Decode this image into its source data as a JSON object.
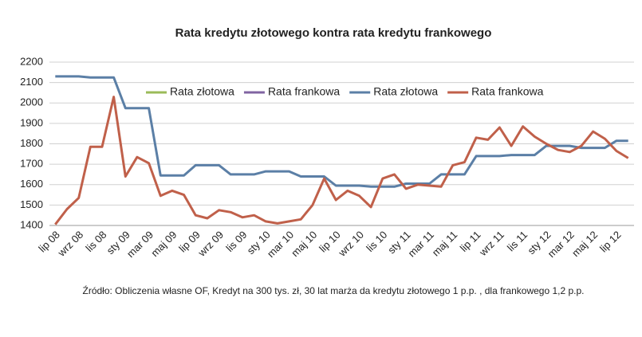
{
  "chart_data": {
    "type": "line",
    "title": "Rata kredytu złotowego kontra rata kredytu frankowego",
    "note": "Źródło: Obliczenia własne OF, Kredyt na 300 tys. zł, 30 lat marża da kredytu złotowego 1 p.p. , dla frankowego 1,2 p.p.",
    "categories": [
      "lip 08",
      null,
      "wrz 08",
      null,
      "lis 08",
      null,
      "sty 09",
      null,
      "mar 09",
      null,
      "maj 09",
      null,
      "lip 09",
      null,
      "wrz 09",
      null,
      "lis 09",
      null,
      "sty 10",
      null,
      "mar 10",
      null,
      "maj 10",
      null,
      "lip 10",
      null,
      "wrz 10",
      null,
      "lis 10",
      null,
      "sty 11",
      null,
      "mar 11",
      null,
      "maj 11",
      null,
      "lip 11",
      null,
      "wrz 11",
      null,
      "lis 11",
      null,
      "sty 12",
      null,
      "mar 12",
      null,
      "maj 12",
      null,
      "lip 12",
      null
    ],
    "series": [
      {
        "name": "Rata złotowa",
        "color": "#9bbb59",
        "values": [
          null,
          null,
          null,
          null,
          null,
          null,
          null,
          null,
          null,
          null,
          null,
          null,
          null,
          null,
          null,
          null,
          null,
          null,
          null,
          null,
          null,
          null,
          null,
          null,
          null,
          null,
          null,
          null,
          null,
          null,
          null,
          null,
          null,
          null,
          null,
          null,
          null,
          null,
          null,
          null,
          null,
          null,
          null,
          null,
          null,
          null,
          null,
          null,
          null,
          null
        ]
      },
      {
        "name": "Rata frankowa",
        "color": "#8064a2",
        "values": [
          null,
          null,
          null,
          null,
          null,
          null,
          null,
          null,
          null,
          null,
          null,
          null,
          null,
          null,
          null,
          null,
          null,
          null,
          null,
          null,
          null,
          null,
          null,
          null,
          null,
          null,
          null,
          null,
          null,
          null,
          null,
          null,
          null,
          null,
          null,
          null,
          null,
          null,
          null,
          null,
          null,
          null,
          null,
          null,
          null,
          null,
          null,
          null,
          null,
          null
        ]
      },
      {
        "name": "Rata złotowa",
        "color": "#5b7fa6",
        "values": [
          2130,
          2130,
          2130,
          2125,
          2125,
          2125,
          1975,
          1975,
          1975,
          1645,
          1645,
          1645,
          1695,
          1695,
          1695,
          1650,
          1650,
          1650,
          1665,
          1665,
          1665,
          1640,
          1640,
          1640,
          1595,
          1595,
          1595,
          1590,
          1590,
          1590,
          1605,
          1605,
          1605,
          1650,
          1650,
          1650,
          1740,
          1740,
          1740,
          1745,
          1745,
          1745,
          1790,
          1790,
          1790,
          1780,
          1780,
          1780,
          1815,
          1815
        ]
      },
      {
        "name": "Rata frankowa",
        "color": "#c0604a",
        "values": [
          1405,
          1480,
          1535,
          1785,
          1785,
          2030,
          1640,
          1735,
          1705,
          1545,
          1570,
          1550,
          1450,
          1435,
          1475,
          1465,
          1440,
          1450,
          1420,
          1410,
          1420,
          1430,
          1500,
          1630,
          1525,
          1570,
          1545,
          1490,
          1630,
          1650,
          1580,
          1600,
          1595,
          1590,
          1695,
          1710,
          1830,
          1820,
          1880,
          1790,
          1885,
          1835,
          1800,
          1770,
          1760,
          1790,
          1860,
          1825,
          1765,
          1730
        ]
      }
    ],
    "ylim": [
      1400,
      2200
    ],
    "yticks": [
      1400,
      1500,
      1600,
      1700,
      1800,
      1900,
      2000,
      2100,
      2200
    ],
    "grid": true
  }
}
